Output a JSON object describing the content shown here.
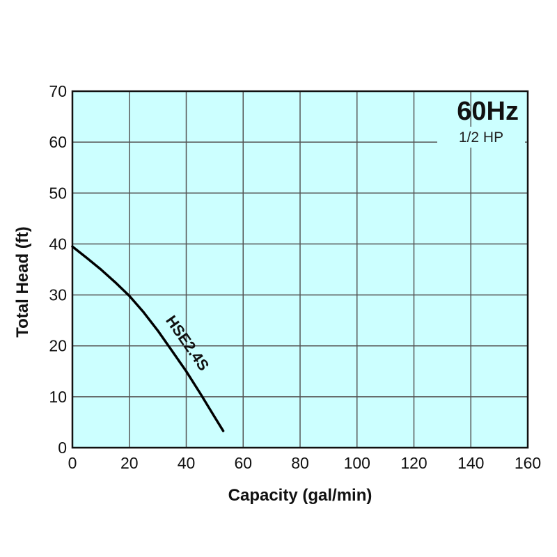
{
  "chart_data": {
    "type": "line",
    "xlabel": "Capacity (gal/min)",
    "ylabel": "Total Head (ft)",
    "xlim": [
      0,
      160
    ],
    "ylim": [
      0,
      70
    ],
    "x_ticks": [
      0,
      20,
      40,
      60,
      80,
      100,
      120,
      140,
      160
    ],
    "y_ticks": [
      0,
      10,
      20,
      30,
      40,
      50,
      60,
      70
    ],
    "grid": true,
    "background_color": "#ccffff",
    "grid_color": "#555555",
    "annotations": {
      "frequency": "60Hz",
      "power": "1/2 HP"
    },
    "series": [
      {
        "name": "HSE2.4S",
        "color": "#000000",
        "x": [
          0,
          5,
          10,
          15,
          20,
          25,
          30,
          35,
          40,
          45,
          50,
          53
        ],
        "y": [
          39.5,
          37.3,
          35.0,
          32.5,
          29.8,
          26.6,
          23.0,
          19.0,
          15.0,
          10.6,
          6.0,
          3.3
        ]
      }
    ]
  }
}
